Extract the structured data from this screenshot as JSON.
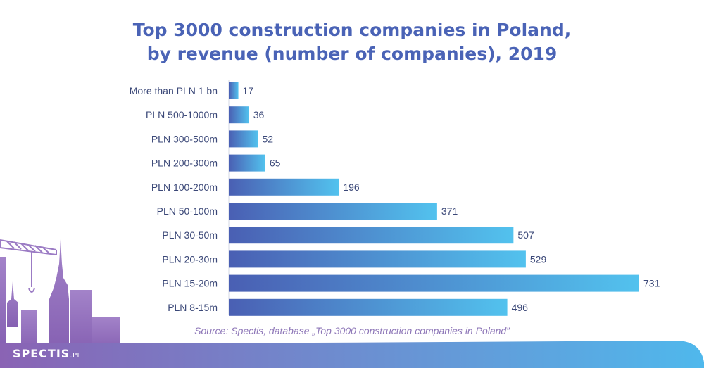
{
  "chart_data": {
    "type": "bar",
    "orientation": "horizontal",
    "title_line1": "Top 3000 construction companies in Poland,",
    "title_line2": "by revenue (number of companies), 2019",
    "categories": [
      "More than PLN 1 bn",
      "PLN 500-1000m",
      "PLN 300-500m",
      "PLN 200-300m",
      "PLN 100-200m",
      "PLN 50-100m",
      "PLN 30-50m",
      "PLN 20-30m",
      "PLN 15-20m",
      "PLN 8-15m"
    ],
    "values": [
      17,
      36,
      52,
      65,
      196,
      371,
      507,
      529,
      731,
      496
    ],
    "xlim": [
      0,
      731
    ],
    "grid": false,
    "data_labels": true,
    "colors": {
      "bar_start": "#4a5fb3",
      "bar_end": "#52c2ee",
      "title": "#4a63b6",
      "labels": "#3b4878",
      "source": "#8e77b8"
    }
  },
  "source": "Source: Spectis, database „Top 3000 construction companies in Poland”",
  "logo": {
    "name": "SPECTIS",
    "suffix": ".PL"
  },
  "decor": {
    "illustration": "crane-and-skyline-silhouette",
    "band_color_left": "#8a63b4",
    "band_color_right": "#4fb8ec"
  }
}
